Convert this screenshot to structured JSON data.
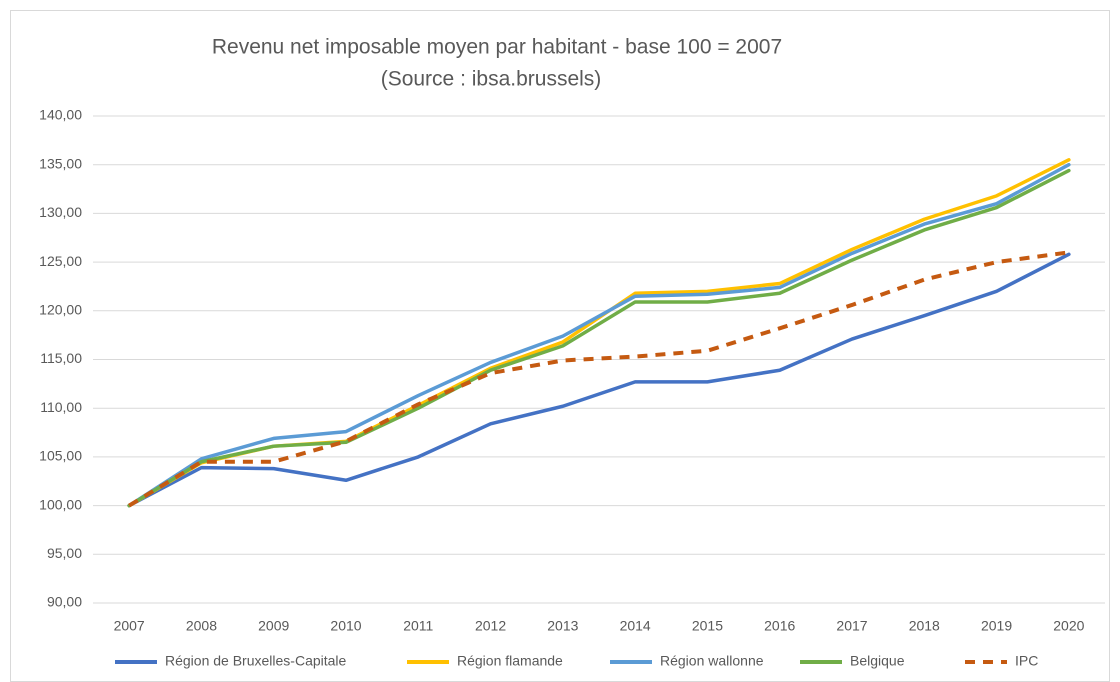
{
  "chart_data": {
    "type": "line",
    "title": "Revenu net imposable moyen par habitant - base 100 = 2007",
    "subtitle": "(Source : ibsa.brussels)",
    "categories": [
      "2007",
      "2008",
      "2009",
      "2010",
      "2011",
      "2012",
      "2013",
      "2014",
      "2015",
      "2016",
      "2017",
      "2018",
      "2019",
      "2020"
    ],
    "series": [
      {
        "name": "Région de Bruxelles-Capitale",
        "color": "#4472c4",
        "values": [
          100,
          103.9,
          103.8,
          102.6,
          105.0,
          108.4,
          110.2,
          112.7,
          112.7,
          113.9,
          117.1,
          119.5,
          122.0,
          125.8
        ]
      },
      {
        "name": "Région flamande",
        "color": "#ffc000",
        "values": [
          100,
          104.4,
          106.1,
          106.6,
          110.3,
          114.1,
          116.8,
          121.8,
          122.0,
          122.8,
          126.3,
          129.4,
          131.8,
          135.5
        ]
      },
      {
        "name": "Région wallonne",
        "color": "#5b9bd5",
        "values": [
          100,
          104.8,
          106.9,
          107.6,
          111.3,
          114.7,
          117.4,
          121.5,
          121.7,
          122.4,
          125.9,
          128.9,
          131.0,
          135.0
        ]
      },
      {
        "name": "Belgique",
        "color": "#70ad47",
        "values": [
          100,
          104.5,
          106.1,
          106.5,
          110.0,
          113.9,
          116.4,
          120.9,
          120.9,
          121.8,
          125.2,
          128.3,
          130.6,
          134.4
        ]
      },
      {
        "name": "IPC",
        "color": "#c55a11",
        "dashed": true,
        "values": [
          100,
          104.5,
          104.5,
          106.6,
          110.4,
          113.6,
          114.9,
          115.3,
          115.9,
          118.2,
          120.6,
          123.2,
          125.0,
          126.0
        ]
      }
    ],
    "ylim": [
      90,
      140
    ],
    "yticks": [
      {
        "value": 90,
        "label": "90,00"
      },
      {
        "value": 95,
        "label": "95,00"
      },
      {
        "value": 100,
        "label": "100,00"
      },
      {
        "value": 105,
        "label": "105,00"
      },
      {
        "value": 110,
        "label": "110,00"
      },
      {
        "value": 115,
        "label": "115,00"
      },
      {
        "value": 120,
        "label": "120,00"
      },
      {
        "value": 125,
        "label": "125,00"
      },
      {
        "value": 130,
        "label": "130,00"
      },
      {
        "value": 135,
        "label": "135,00"
      },
      {
        "value": 140,
        "label": "140,00"
      }
    ],
    "grid": true,
    "legend": "bottom"
  }
}
